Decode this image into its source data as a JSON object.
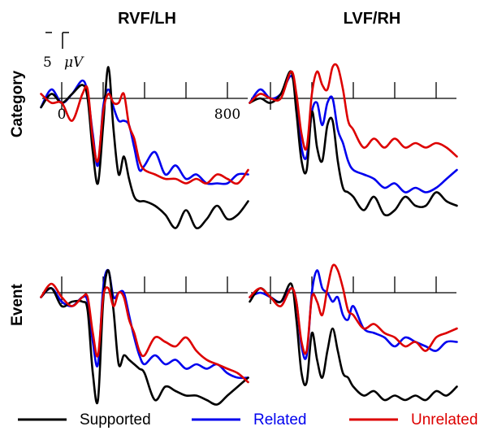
{
  "chart_data": {
    "type": "line",
    "panel_titles": [
      "RVF/LH",
      "LVF/RH"
    ],
    "row_labels": [
      "Category",
      "Event"
    ],
    "scale_bar": {
      "value": "5",
      "unit": "μV"
    },
    "x_ticks_ms": [
      0,
      200,
      400,
      600,
      800
    ],
    "x_tick_labels": [
      "0",
      "800"
    ],
    "xlim": [
      -100,
      900
    ],
    "grid": false,
    "legend_position": "bottom",
    "legend": [
      {
        "name": "Supported",
        "color": "#000000"
      },
      {
        "name": "Related",
        "color": "#0000ee"
      },
      {
        "name": "Unrelated",
        "color": "#dd0000"
      }
    ],
    "x": [
      -100,
      -50,
      0,
      50,
      100,
      125,
      150,
      175,
      200,
      225,
      250,
      275,
      300,
      325,
      350,
      375,
      400,
      450,
      500,
      550,
      600,
      650,
      700,
      750,
      800,
      850,
      900
    ],
    "panels": [
      {
        "column": "RVF/LH",
        "row": "Category",
        "series": [
          {
            "name": "Supported",
            "values": [
              -1.0,
              0.5,
              -0.5,
              0.5,
              1.5,
              0.0,
              -6.0,
              -9.5,
              -3.0,
              3.5,
              -3.5,
              -8.5,
              -6.5,
              -9.0,
              -11.0,
              -11.5,
              -11.5,
              -12.0,
              -13.0,
              -14.5,
              -12.5,
              -14.5,
              -13.5,
              -12.0,
              -13.5,
              -13.0,
              -11.5
            ]
          },
          {
            "name": "Related",
            "values": [
              -1.0,
              1.0,
              -0.5,
              0.5,
              2.0,
              0.5,
              -4.0,
              -7.5,
              -1.0,
              1.0,
              -1.0,
              -2.5,
              -2.5,
              -3.0,
              -5.5,
              -8.0,
              -7.5,
              -6.0,
              -8.5,
              -7.5,
              -9.0,
              -8.5,
              -9.5,
              -9.5,
              -9.5,
              -8.5,
              -8.5
            ]
          },
          {
            "name": "Unrelated",
            "values": [
              0.5,
              -0.5,
              -0.5,
              -2.5,
              0.5,
              1.0,
              -4.5,
              -7.0,
              -1.5,
              0.5,
              -0.5,
              -0.5,
              0.5,
              -3.0,
              -4.5,
              -7.0,
              -8.0,
              -8.5,
              -9.0,
              -9.0,
              -9.5,
              -9.0,
              -9.5,
              -8.5,
              -9.0,
              -9.5,
              -8.0
            ]
          }
        ]
      },
      {
        "column": "LVF/RH",
        "row": "Category",
        "series": [
          {
            "name": "Supported",
            "values": [
              -0.5,
              0.0,
              -0.5,
              0.5,
              3.0,
              -1.5,
              -7.0,
              -8.0,
              -1.5,
              -5.5,
              -7.0,
              -3.0,
              -2.5,
              -7.0,
              -10.0,
              -10.5,
              -11.0,
              -12.5,
              -11.0,
              -13.0,
              -12.5,
              -11.0,
              -12.0,
              -12.0,
              -10.5,
              -11.5,
              -12.0
            ]
          },
          {
            "name": "Related",
            "values": [
              -0.5,
              1.0,
              0.0,
              0.5,
              2.5,
              0.0,
              -5.5,
              -6.5,
              -1.5,
              -0.5,
              -3.0,
              -0.5,
              0.0,
              -3.5,
              -5.0,
              -7.0,
              -8.0,
              -8.5,
              -9.0,
              -10.0,
              -9.5,
              -10.5,
              -10.0,
              -10.5,
              -10.0,
              -9.0,
              -8.0
            ]
          },
          {
            "name": "Unrelated",
            "values": [
              -0.5,
              0.5,
              0.0,
              0.0,
              3.0,
              0.5,
              -4.0,
              -5.5,
              0.5,
              3.0,
              1.5,
              1.0,
              3.5,
              3.5,
              1.0,
              -2.5,
              -3.5,
              -5.5,
              -4.5,
              -5.5,
              -4.5,
              -5.5,
              -5.0,
              -5.5,
              -5.0,
              -5.5,
              -6.5
            ]
          }
        ]
      },
      {
        "column": "RVF/LH",
        "row": "Event",
        "series": [
          {
            "name": "Supported",
            "values": [
              -0.5,
              0.5,
              -1.5,
              -1.0,
              -1.0,
              -2.0,
              -9.0,
              -12.0,
              -1.0,
              2.5,
              -2.0,
              -8.0,
              -7.0,
              -7.5,
              -8.0,
              -8.5,
              -9.0,
              -12.0,
              -10.5,
              -11.0,
              -11.5,
              -11.5,
              -12.0,
              -12.5,
              -11.5,
              -10.5,
              -9.5
            ]
          },
          {
            "name": "Related",
            "values": [
              -0.5,
              0.5,
              -1.0,
              -1.5,
              -0.5,
              -1.0,
              -5.5,
              -8.0,
              0.5,
              2.5,
              -0.5,
              0.0,
              0.0,
              -2.5,
              -5.0,
              -7.0,
              -8.0,
              -7.0,
              -8.0,
              -7.5,
              -8.5,
              -8.0,
              -8.5,
              -8.0,
              -9.0,
              -9.5,
              -9.5
            ]
          },
          {
            "name": "Unrelated",
            "values": [
              -0.5,
              1.0,
              -0.5,
              -1.5,
              -0.5,
              -0.5,
              -4.5,
              -7.0,
              -0.5,
              0.5,
              -1.5,
              0.0,
              -0.5,
              -3.0,
              -4.5,
              -6.5,
              -7.0,
              -5.0,
              -5.5,
              -6.0,
              -5.0,
              -6.5,
              -7.5,
              -8.0,
              -8.5,
              -9.0,
              -10.0
            ]
          }
        ]
      },
      {
        "column": "LVF/RH",
        "row": "Event",
        "series": [
          {
            "name": "Supported",
            "values": [
              -1.0,
              0.5,
              -0.5,
              -1.0,
              1.0,
              -3.0,
              -9.0,
              -10.0,
              -4.5,
              -7.5,
              -9.5,
              -6.5,
              -4.0,
              -6.5,
              -9.0,
              -9.5,
              -10.5,
              -11.5,
              -11.0,
              -12.0,
              -11.5,
              -12.0,
              -11.5,
              -12.0,
              -11.0,
              -11.5,
              -10.5
            ]
          },
          {
            "name": "Related",
            "values": [
              -0.5,
              0.0,
              -0.5,
              -1.0,
              0.5,
              -1.0,
              -6.0,
              -7.0,
              0.0,
              2.5,
              0.5,
              0.0,
              -1.0,
              -0.5,
              -2.5,
              -3.0,
              -1.5,
              -4.0,
              -4.5,
              -5.0,
              -6.0,
              -5.0,
              -5.5,
              -6.0,
              -6.5,
              -5.5,
              -5.5
            ]
          },
          {
            "name": "Unrelated",
            "values": [
              -0.5,
              0.5,
              -0.5,
              -1.5,
              0.5,
              -1.0,
              -5.5,
              -6.5,
              -0.5,
              -1.0,
              -2.5,
              0.5,
              3.0,
              2.5,
              0.5,
              -2.0,
              -2.5,
              -4.0,
              -3.5,
              -4.5,
              -5.0,
              -6.0,
              -5.5,
              -6.5,
              -5.0,
              -4.5,
              -4.0
            ]
          }
        ]
      }
    ]
  }
}
